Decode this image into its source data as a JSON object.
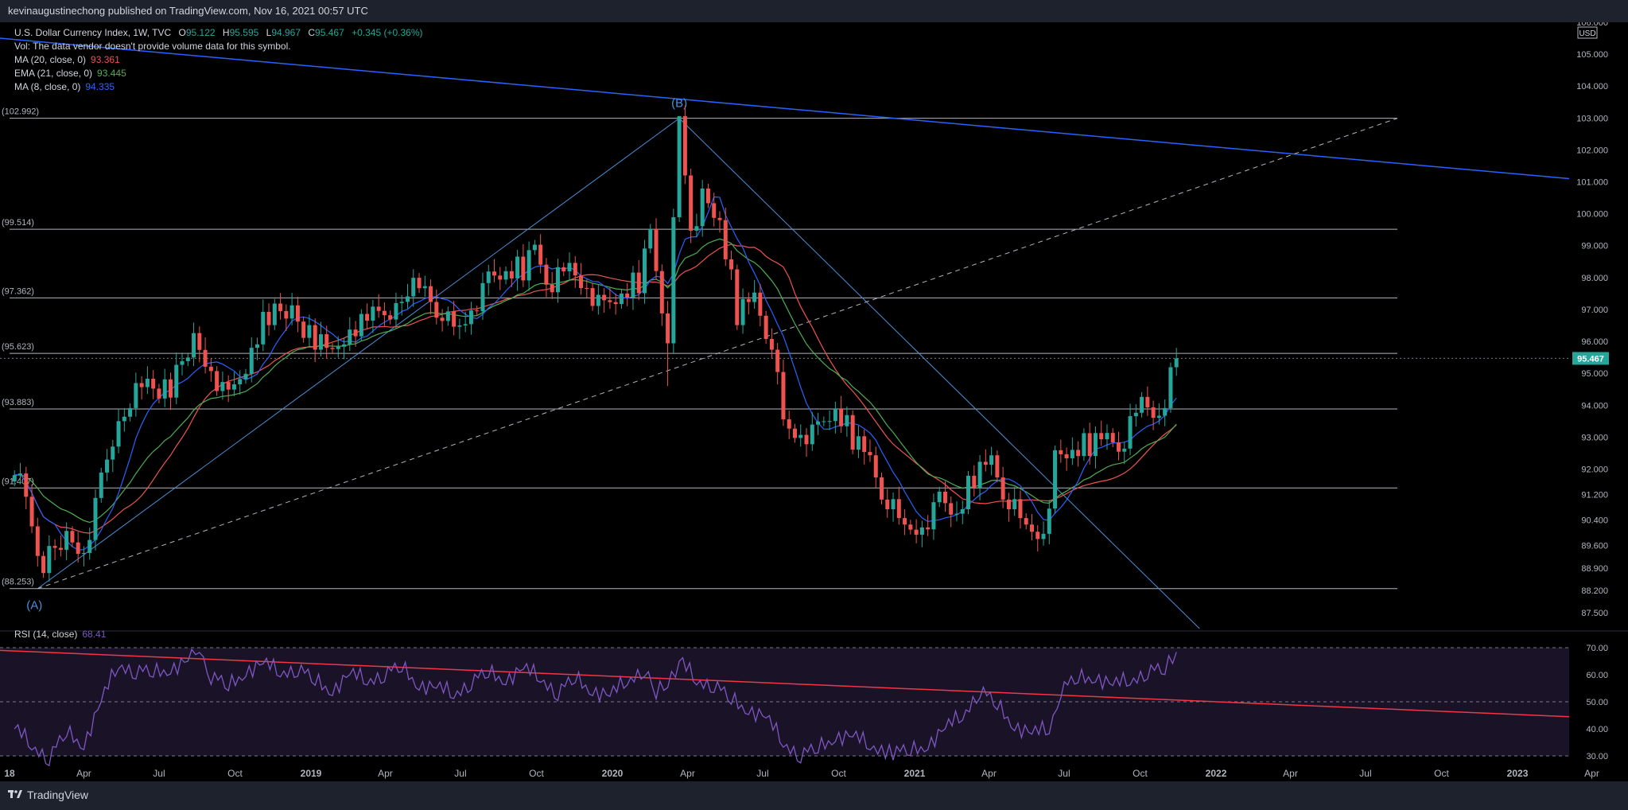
{
  "header": {
    "publish_text": "kevinaugustinechong published on TradingView.com, Nov 16, 2021 00:57 UTC"
  },
  "legend": {
    "symbol": "U.S. Dollar Currency Index, 1W, TVC",
    "o_label": "O",
    "o_value": "95.122",
    "h_label": "H",
    "h_value": "95.595",
    "l_label": "L",
    "l_value": "94.967",
    "c_label": "C",
    "c_value": "95.467",
    "change": "+0.345 (+0.36%)",
    "vol_note": "Vol: The data vendor doesn't provide volume data for this symbol.",
    "ma20_label": "MA (20, close, 0)",
    "ma20_value": "93.361",
    "ema21_label": "EMA (21, close, 0)",
    "ema21_value": "93.445",
    "ma8_label": "MA (8, close, 0)",
    "ma8_value": "94.335",
    "rsi_label": "RSI (14, close)",
    "rsi_value": "68.41"
  },
  "footer": {
    "brand": "TradingView"
  },
  "colors": {
    "up": "#26a69a",
    "down": "#ef5350",
    "ma20": "#ef5350",
    "ema21": "#4caf50",
    "ma8": "#2962ff",
    "trendline": "#2962ff",
    "rsi_line": "#7e57c2",
    "rsi_band": "#1a1328",
    "rsi_trend": "#f23645",
    "fib": "#b2b5be",
    "price_badge": "#26a69a"
  },
  "chart_data": {
    "type": "candlestick",
    "instrument": "U.S. Dollar Currency Index",
    "timeframe": "1W",
    "currency": "USD",
    "ylim": [
      87.0,
      106.0
    ],
    "price_ticks": [
      "106.000",
      "105.000",
      "104.000",
      "103.000",
      "102.000",
      "101.000",
      "100.000",
      "99.000",
      "98.000",
      "97.000",
      "96.000",
      "95.000",
      "94.000",
      "93.000",
      "92.000",
      "91.200",
      "90.400",
      "89.600",
      "88.900",
      "88.200",
      "87.500"
    ],
    "current_price": "95.467",
    "x_ticks": [
      "18",
      "Apr",
      "Jul",
      "Oct",
      "2019",
      "Apr",
      "Jul",
      "Oct",
      "2020",
      "Apr",
      "Jul",
      "Oct",
      "2021",
      "Apr",
      "Jul",
      "Oct",
      "2022",
      "Apr",
      "Jul",
      "Oct",
      "2023",
      "Apr"
    ],
    "close_path": [
      [
        "2018-01-07",
        92.2
      ],
      [
        "2018-01-21",
        91.0
      ],
      [
        "2018-02-11",
        89.0
      ],
      [
        "2018-03-11",
        89.8
      ],
      [
        "2018-04-01",
        89.5
      ],
      [
        "2018-04-22",
        91.5
      ],
      [
        "2018-05-13",
        93.5
      ],
      [
        "2018-05-27",
        94.3
      ],
      [
        "2018-06-17",
        94.7
      ],
      [
        "2018-07-15",
        94.5
      ],
      [
        "2018-08-12",
        96.0
      ],
      [
        "2018-09-02",
        95.2
      ],
      [
        "2018-09-23",
        94.1
      ],
      [
        "2018-10-21",
        95.8
      ],
      [
        "2018-11-11",
        96.9
      ],
      [
        "2018-12-09",
        97.0
      ],
      [
        "2019-01-06",
        96.0
      ],
      [
        "2019-01-27",
        95.5
      ],
      [
        "2019-02-17",
        96.5
      ],
      [
        "2019-03-17",
        96.7
      ],
      [
        "2019-04-14",
        97.2
      ],
      [
        "2019-04-28",
        97.8
      ],
      [
        "2019-05-19",
        97.6
      ],
      [
        "2019-06-09",
        96.9
      ],
      [
        "2019-06-23",
        96.2
      ],
      [
        "2019-07-14",
        97.1
      ],
      [
        "2019-08-04",
        97.8
      ],
      [
        "2019-08-25",
        98.2
      ],
      [
        "2019-09-15",
        98.3
      ],
      [
        "2019-09-29",
        98.9
      ],
      [
        "2019-10-20",
        97.8
      ],
      [
        "2019-11-10",
        98.2
      ],
      [
        "2019-12-01",
        97.8
      ],
      [
        "2019-12-22",
        96.9
      ],
      [
        "2020-01-12",
        97.5
      ],
      [
        "2020-02-02",
        97.9
      ],
      [
        "2020-02-16",
        99.4
      ],
      [
        "2020-03-08",
        96.2
      ],
      [
        "2020-03-22",
        102.8
      ],
      [
        "2020-04-05",
        99.6
      ],
      [
        "2020-04-19",
        100.4
      ],
      [
        "2020-05-10",
        99.8
      ],
      [
        "2020-05-31",
        96.9
      ],
      [
        "2020-06-21",
        97.4
      ],
      [
        "2020-07-12",
        96.0
      ],
      [
        "2020-07-26",
        93.3
      ],
      [
        "2020-08-16",
        93.2
      ],
      [
        "2020-09-06",
        93.1
      ],
      [
        "2020-09-27",
        93.9
      ],
      [
        "2020-10-18",
        93.0
      ],
      [
        "2020-11-08",
        92.3
      ],
      [
        "2020-11-29",
        91.0
      ],
      [
        "2020-12-20",
        90.0
      ],
      [
        "2021-01-10",
        90.3
      ],
      [
        "2021-01-31",
        90.9
      ],
      [
        "2021-02-21",
        90.6
      ],
      [
        "2021-03-14",
        91.8
      ],
      [
        "2021-04-04",
        92.3
      ],
      [
        "2021-04-25",
        91.0
      ],
      [
        "2021-05-16",
        90.0
      ],
      [
        "2021-06-06",
        90.1
      ],
      [
        "2021-06-20",
        92.2
      ],
      [
        "2021-07-11",
        92.6
      ],
      [
        "2021-08-01",
        92.8
      ],
      [
        "2021-08-22",
        93.0
      ],
      [
        "2021-09-12",
        92.9
      ],
      [
        "2021-10-03",
        94.0
      ],
      [
        "2021-10-24",
        93.8
      ],
      [
        "2021-11-07",
        94.8
      ],
      [
        "2021-11-14",
        95.467
      ]
    ],
    "fib_levels": [
      "102.992",
      "99.514",
      "97.362",
      "95.623",
      "93.883",
      "91.407",
      "88.253"
    ],
    "wave_labels": [
      "(A)",
      "(B)"
    ],
    "rsi": {
      "period": 14,
      "ylim": [
        25,
        75
      ],
      "ticks": [
        "70.00",
        "60.00",
        "50.00",
        "40.00",
        "30.00"
      ],
      "bands": [
        30,
        50,
        70
      ],
      "path": [
        [
          "2018-01-07",
          40
        ],
        [
          "2018-01-28",
          34
        ],
        [
          "2018-02-18",
          30
        ],
        [
          "2018-03-11",
          38
        ],
        [
          "2018-04-01",
          35
        ],
        [
          "2018-04-22",
          50
        ],
        [
          "2018-05-13",
          64
        ],
        [
          "2018-06-03",
          62
        ],
        [
          "2018-06-24",
          60
        ],
        [
          "2018-07-15",
          63
        ],
        [
          "2018-08-05",
          65
        ],
        [
          "2018-08-19",
          70
        ],
        [
          "2018-09-02",
          60
        ],
        [
          "2018-09-23",
          55
        ],
        [
          "2018-10-14",
          62
        ],
        [
          "2018-11-04",
          64
        ],
        [
          "2018-11-25",
          61
        ],
        [
          "2018-12-16",
          63
        ],
        [
          "2019-01-06",
          57
        ],
        [
          "2019-01-27",
          55
        ],
        [
          "2019-02-17",
          60
        ],
        [
          "2019-03-10",
          58
        ],
        [
          "2019-03-31",
          61
        ],
        [
          "2019-04-21",
          62
        ],
        [
          "2019-05-12",
          57
        ],
        [
          "2019-06-02",
          55
        ],
        [
          "2019-06-23",
          53
        ],
        [
          "2019-07-14",
          58
        ],
        [
          "2019-08-04",
          60
        ],
        [
          "2019-08-25",
          59
        ],
        [
          "2019-09-15",
          62
        ],
        [
          "2019-10-06",
          59
        ],
        [
          "2019-10-27",
          54
        ],
        [
          "2019-11-17",
          58
        ],
        [
          "2019-12-08",
          55
        ],
        [
          "2019-12-29",
          52
        ],
        [
          "2020-01-19",
          58
        ],
        [
          "2020-02-09",
          63
        ],
        [
          "2020-02-23",
          52
        ],
        [
          "2020-03-08",
          58
        ],
        [
          "2020-03-22",
          65
        ],
        [
          "2020-04-12",
          58
        ],
        [
          "2020-05-03",
          57
        ],
        [
          "2020-05-24",
          50
        ],
        [
          "2020-06-14",
          48
        ],
        [
          "2020-07-05",
          44
        ],
        [
          "2020-07-26",
          35
        ],
        [
          "2020-08-16",
          31
        ],
        [
          "2020-09-06",
          32
        ],
        [
          "2020-09-27",
          38
        ],
        [
          "2020-10-18",
          37
        ],
        [
          "2020-11-08",
          34
        ],
        [
          "2020-12-06",
          32
        ],
        [
          "2020-12-27",
          31
        ],
        [
          "2021-01-17",
          35
        ],
        [
          "2021-02-07",
          40
        ],
        [
          "2021-02-28",
          45
        ],
        [
          "2021-03-21",
          55
        ],
        [
          "2021-04-11",
          48
        ],
        [
          "2021-05-02",
          42
        ],
        [
          "2021-05-23",
          38
        ],
        [
          "2021-06-13",
          40
        ],
        [
          "2021-06-27",
          55
        ],
        [
          "2021-07-18",
          58
        ],
        [
          "2021-08-08",
          60
        ],
        [
          "2021-08-29",
          56
        ],
        [
          "2021-09-19",
          58
        ],
        [
          "2021-10-10",
          62
        ],
        [
          "2021-10-31",
          61
        ],
        [
          "2021-11-14",
          68.41
        ]
      ]
    },
    "moving_averages": [
      {
        "name": "MA (20, close, 0)",
        "value": "93.361"
      },
      {
        "name": "EMA (21, close, 0)",
        "value": "93.445"
      },
      {
        "name": "MA (8, close, 0)",
        "value": "94.335"
      }
    ]
  }
}
